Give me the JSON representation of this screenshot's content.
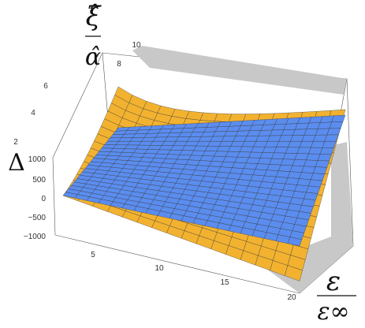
{
  "chart_data": {
    "type": "surface3d",
    "title": "",
    "axes": {
      "x": {
        "label": "ε / ε∞",
        "label_top": "ε",
        "label_bottom": "ε∞",
        "range": [
          2,
          20
        ],
        "ticks": [
          5,
          10,
          15,
          20
        ]
      },
      "y": {
        "label": "ξ̂ / α̂",
        "label_top": "ξ̂",
        "label_bottom": "α̂",
        "range": [
          1,
          10
        ],
        "ticks": [
          2,
          4,
          6,
          8,
          10
        ]
      },
      "z": {
        "label": "Δ",
        "range": [
          -1000,
          1000
        ],
        "ticks": [
          -1000,
          -500,
          0,
          500,
          1000
        ]
      }
    },
    "surfaces": [
      {
        "name": "",
        "color": "#f2b230",
        "description_points": [
          {
            "x": 2,
            "y": 10,
            "z": 1000
          },
          {
            "x": 2,
            "y": 1,
            "z": 0
          },
          {
            "x": 20,
            "y": 10,
            "z": 300
          },
          {
            "x": 20,
            "y": 1,
            "z": -1000
          }
        ]
      },
      {
        "name": "",
        "color": "#5b8def",
        "description_points": [
          {
            "x": 2,
            "y": 1,
            "z": 0
          },
          {
            "x": 20,
            "y": 1,
            "z": 0
          },
          {
            "x": 2,
            "y": 10,
            "z": 0
          },
          {
            "x": 20,
            "y": 10,
            "z": 0
          }
        ]
      }
    ],
    "grid": true,
    "colors": {
      "gold": "#f2b230",
      "blue": "#5b8def",
      "gray": "#c8c8c8"
    }
  }
}
